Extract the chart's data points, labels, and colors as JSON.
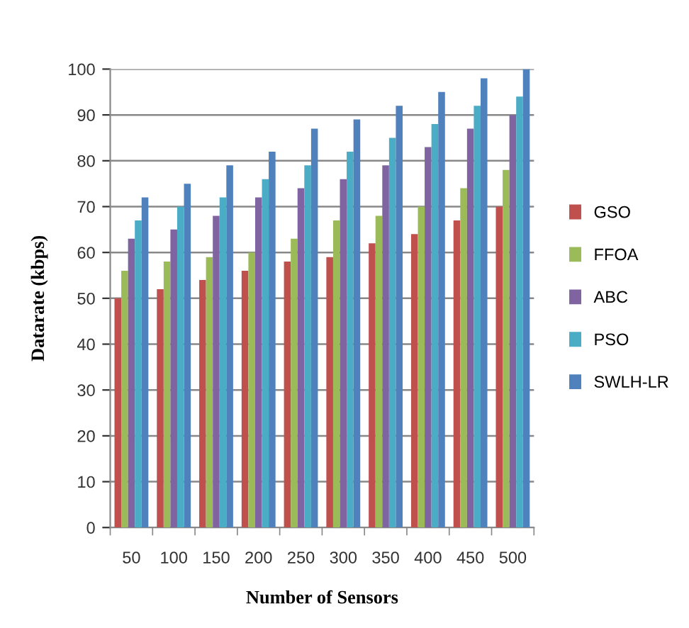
{
  "chart_data": {
    "type": "bar",
    "xlabel": "Number of Sensors",
    "ylabel": "Datarate (kbps)",
    "categories": [
      "50",
      "100",
      "150",
      "200",
      "250",
      "300",
      "350",
      "400",
      "450",
      "500"
    ],
    "series": [
      {
        "name": "GSO",
        "color": "#c0504d",
        "values": [
          50,
          52,
          54,
          56,
          58,
          59,
          62,
          64,
          67,
          70
        ]
      },
      {
        "name": "FFOA",
        "color": "#9bbb59",
        "values": [
          56,
          58,
          59,
          60,
          63,
          67,
          68,
          70,
          74,
          78
        ]
      },
      {
        "name": "ABC",
        "color": "#8064a2",
        "values": [
          63,
          65,
          68,
          72,
          74,
          76,
          79,
          83,
          87,
          90
        ]
      },
      {
        "name": "PSO",
        "color": "#4bacc6",
        "values": [
          67,
          70,
          72,
          76,
          79,
          82,
          85,
          88,
          92,
          94
        ]
      },
      {
        "name": "SWLH-LR",
        "color": "#4f81bd",
        "values": [
          72,
          75,
          79,
          82,
          87,
          89,
          92,
          95,
          98,
          100
        ]
      }
    ],
    "ylim": [
      0,
      100
    ],
    "yticks": [
      0,
      10,
      20,
      30,
      40,
      50,
      60,
      70,
      80,
      90,
      100
    ],
    "grid": "y",
    "legend": "right"
  }
}
